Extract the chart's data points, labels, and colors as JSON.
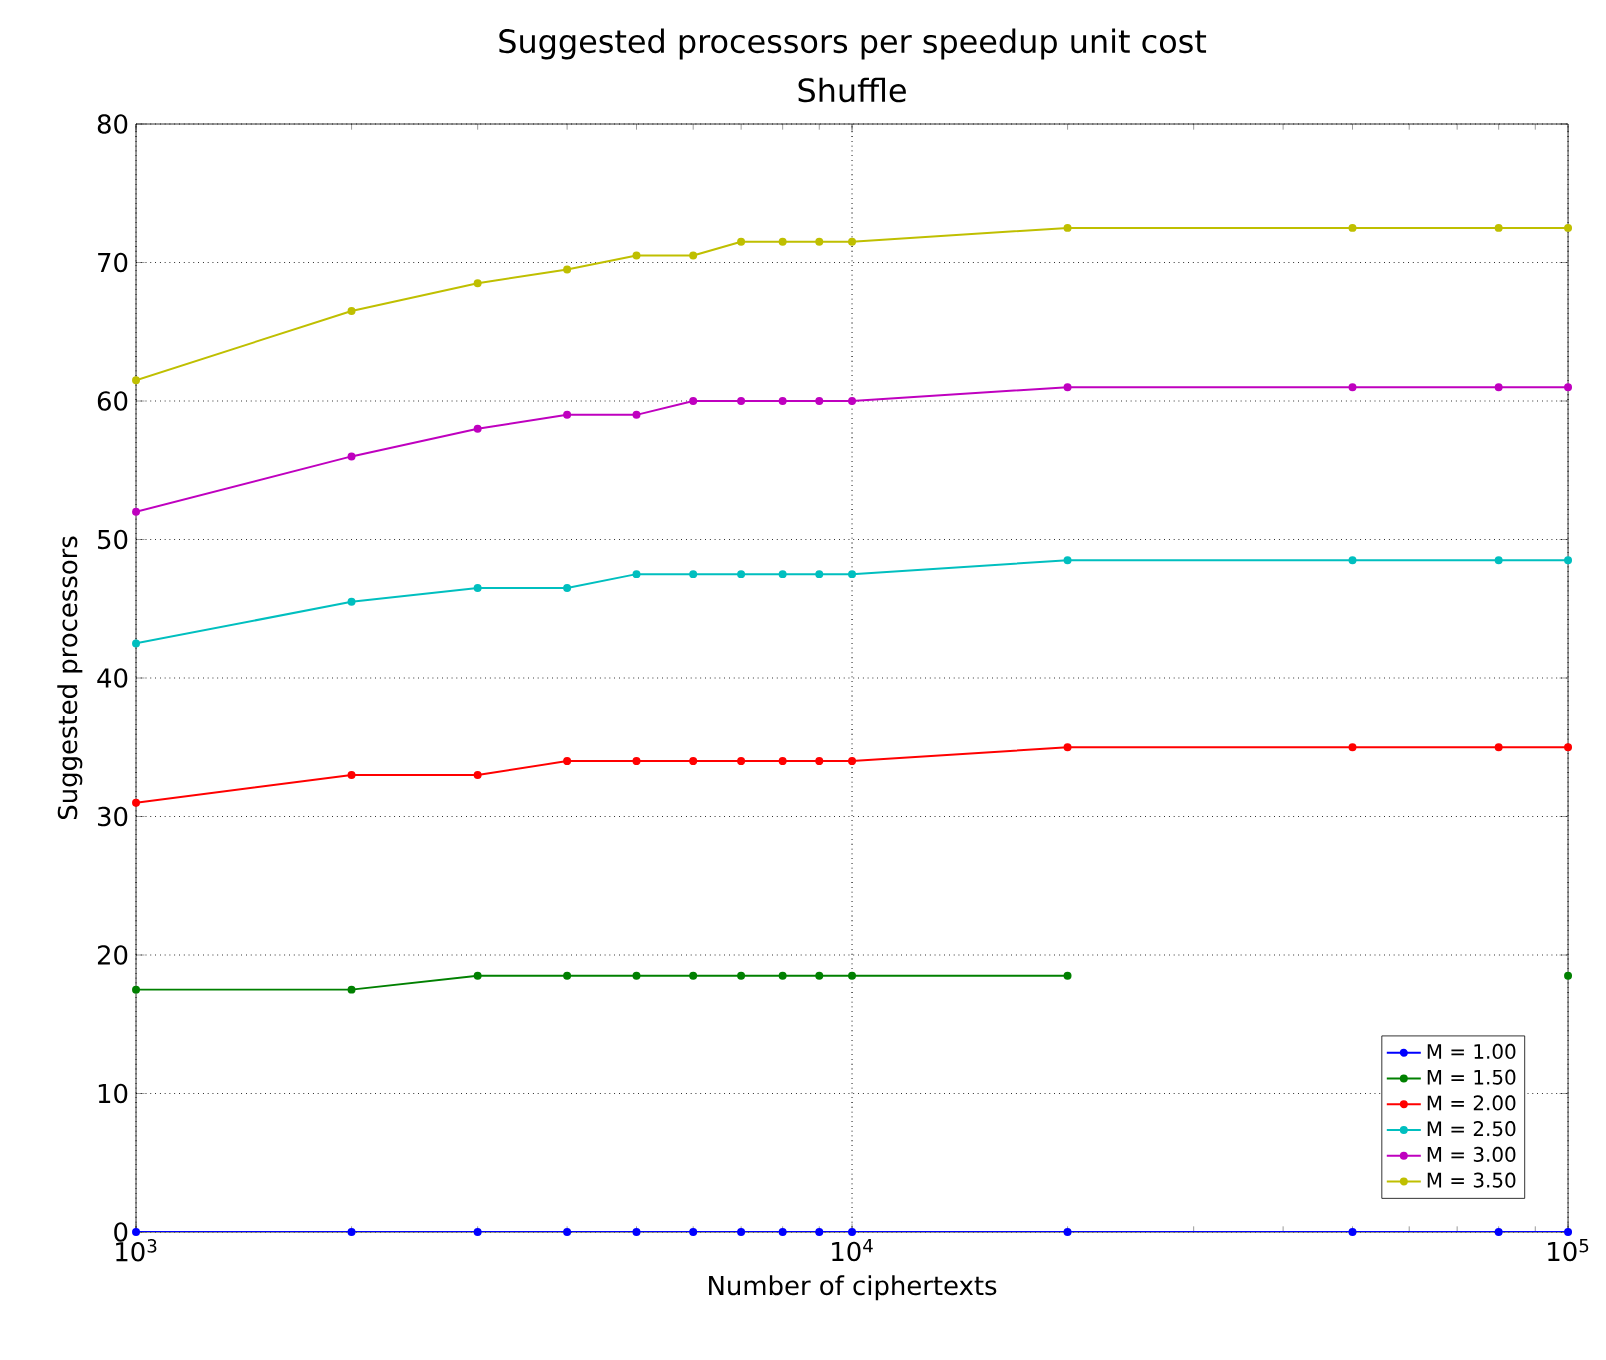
{
  "chart_data": {
    "type": "line",
    "title": "Suggested processors per speedup unit cost",
    "subtitle": "Shuffle",
    "xlabel": "Number of ciphertexts",
    "ylabel": "Suggested processors",
    "x": [
      1000,
      2000,
      3000,
      4000,
      5000,
      6000,
      7000,
      8000,
      9000,
      10000,
      20000,
      50000,
      80000,
      100000
    ],
    "series": [
      {
        "name": "M = 1.00",
        "color": "#0000ff",
        "values": [
          0,
          0,
          0,
          0,
          0,
          0,
          0,
          0,
          0,
          0,
          0,
          0,
          0,
          0
        ]
      },
      {
        "name": "M = 1.50",
        "color": "#008000",
        "values": [
          17.5,
          17.5,
          18.5,
          18.5,
          18.5,
          18.5,
          18.5,
          18.5,
          18.5,
          18.5,
          18.5,
          null,
          null,
          18.5
        ]
      },
      {
        "name": "M = 2.00",
        "color": "#ff0000",
        "values": [
          31,
          33,
          33,
          34,
          34,
          34,
          34,
          34,
          34,
          34,
          35,
          35,
          35,
          35
        ]
      },
      {
        "name": "M = 2.50",
        "color": "#00bfbf",
        "values": [
          42.5,
          45.5,
          46.5,
          46.5,
          47.5,
          47.5,
          47.5,
          47.5,
          47.5,
          47.5,
          48.5,
          48.5,
          48.5,
          48.5
        ]
      },
      {
        "name": "M = 3.00",
        "color": "#bf00bf",
        "values": [
          52,
          56,
          58,
          59,
          59,
          60,
          60,
          60,
          60,
          60,
          61,
          61,
          61,
          61
        ]
      },
      {
        "name": "M = 3.50",
        "color": "#bfbf00",
        "values": [
          61.5,
          66.5,
          68.5,
          69.5,
          70.5,
          70.5,
          71.5,
          71.5,
          71.5,
          71.5,
          72.5,
          72.5,
          72.5,
          72.5
        ]
      }
    ],
    "xlim": [
      1000,
      100000
    ],
    "ylim": [
      0,
      80
    ],
    "xticks": [
      {
        "value": 1000,
        "label": "10$^{3}$"
      },
      {
        "value": 10000,
        "label": "10$^{4}$"
      },
      {
        "value": 100000,
        "label": "10$^{5}$"
      }
    ],
    "yticks": [
      0,
      10,
      20,
      30,
      40,
      50,
      60,
      70,
      80
    ],
    "log": "x",
    "grid": true,
    "legend": "bottom right",
    "marker": "circle",
    "line_style": "solid"
  }
}
